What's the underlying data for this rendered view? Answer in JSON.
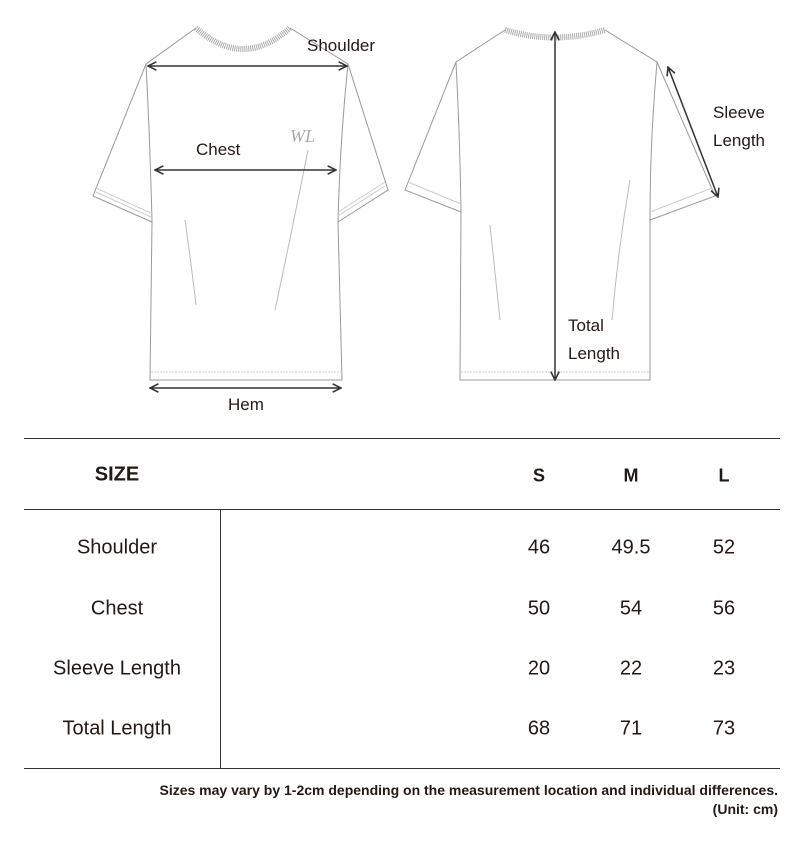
{
  "diagram": {
    "logo_text": "WL",
    "labels": {
      "shoulder": "Shoulder",
      "chest": "Chest",
      "hem": "Hem",
      "sleeve_length_1": "Sleeve",
      "sleeve_length_2": "Length",
      "total_length_1": "Total",
      "total_length_2": "Length"
    }
  },
  "table": {
    "header": {
      "label": "SIZE",
      "sizes": [
        "S",
        "M",
        "L"
      ]
    },
    "rows": [
      {
        "label": "Shoulder",
        "values": [
          "46",
          "49.5",
          "52"
        ]
      },
      {
        "label": "Chest",
        "values": [
          "50",
          "54",
          "56"
        ]
      },
      {
        "label": "Sleeve Length",
        "values": [
          "20",
          "22",
          "23"
        ]
      },
      {
        "label": "Total Length",
        "values": [
          "68",
          "71",
          "73"
        ]
      }
    ]
  },
  "notes": {
    "variance": "Sizes may vary by 1-2cm depending on the measurement location and individual differences.",
    "unit": "(Unit: cm)"
  }
}
